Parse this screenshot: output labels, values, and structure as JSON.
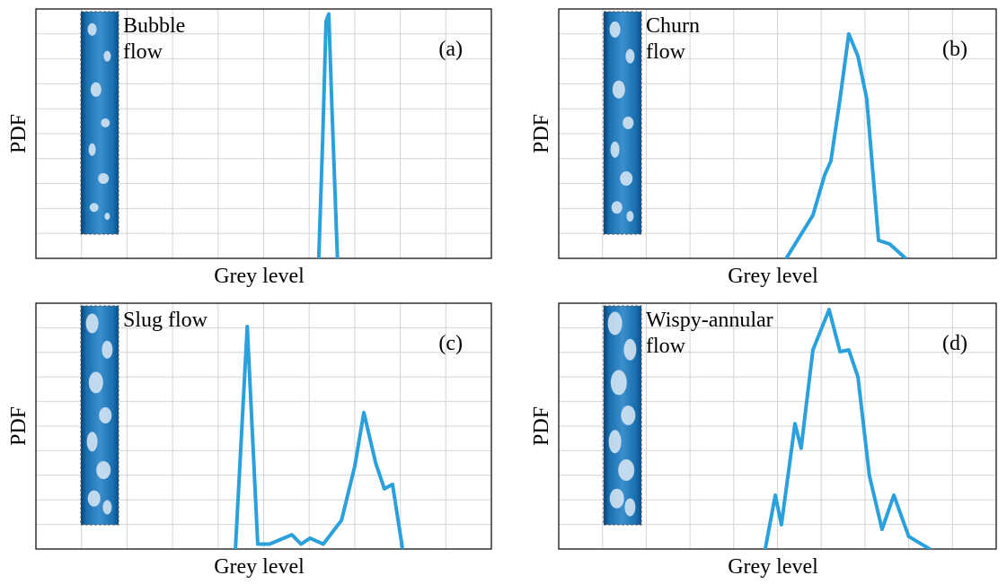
{
  "chart_data": [
    {
      "type": "line",
      "panel_label": "(a)",
      "annotation": [
        "Bubble",
        "flow"
      ],
      "xlabel": "Grey level",
      "ylabel": "PDF",
      "x": [
        6.21,
        6.3,
        6.37,
        6.43,
        6.5,
        6.62
      ],
      "values": [
        0,
        5,
        9.5,
        9.8,
        6,
        0
      ],
      "color": "#2aa0dc",
      "xlim": [
        0,
        10
      ],
      "ylim": [
        0,
        10
      ],
      "xticks": [
        0,
        1,
        2,
        3,
        4,
        5,
        6,
        7,
        8,
        9,
        10
      ],
      "yticks": [
        0,
        1,
        2,
        3,
        4,
        5,
        6,
        7,
        8,
        9,
        10
      ],
      "grid": true
    },
    {
      "type": "line",
      "panel_label": "(b)",
      "annotation": [
        "Churn",
        "flow"
      ],
      "xlabel": "Grey level",
      "ylabel": "PDF",
      "x": [
        5.2,
        5.81,
        6.08,
        6.22,
        6.43,
        6.63,
        6.84,
        7.04,
        7.31,
        7.56,
        7.93
      ],
      "values": [
        0,
        1.73,
        3.35,
        3.9,
        6.4,
        9.0,
        8.1,
        6.4,
        0.72,
        0.58,
        0
      ],
      "color": "#2aa0dc",
      "xlim": [
        0,
        10
      ],
      "ylim": [
        0,
        10
      ],
      "xticks": [
        0,
        1,
        2,
        3,
        4,
        5,
        6,
        7,
        8,
        9,
        10
      ],
      "yticks": [
        0,
        1,
        2,
        3,
        4,
        5,
        6,
        7,
        8,
        9,
        10
      ],
      "grid": true
    },
    {
      "type": "line",
      "panel_label": "(c)",
      "annotation": [
        "Slug flow"
      ],
      "xlabel": "Grey level",
      "ylabel": "PDF",
      "x": [
        4.38,
        4.64,
        4.87,
        5.13,
        5.62,
        5.82,
        6.02,
        6.31,
        6.71,
        7.0,
        7.2,
        7.46,
        7.65,
        7.83,
        8.05
      ],
      "values": [
        0,
        9.05,
        0.2,
        0.2,
        0.58,
        0.2,
        0.44,
        0.2,
        1.17,
        3.36,
        5.55,
        3.5,
        2.45,
        2.63,
        0
      ],
      "color": "#2aa0dc",
      "xlim": [
        0,
        10
      ],
      "ylim": [
        0,
        10
      ],
      "xticks": [
        0,
        1,
        2,
        3,
        4,
        5,
        6,
        7,
        8,
        9,
        10
      ],
      "yticks": [
        0,
        1,
        2,
        3,
        4,
        5,
        6,
        7,
        8,
        9,
        10
      ],
      "grid": true
    },
    {
      "type": "line",
      "panel_label": "(d)",
      "annotation": [
        "Wispy-annular",
        "flow"
      ],
      "xlabel": "Grey level",
      "ylabel": "PDF",
      "x": [
        4.72,
        4.95,
        5.09,
        5.4,
        5.54,
        5.81,
        6.18,
        6.43,
        6.63,
        6.84,
        7.1,
        7.39,
        7.66,
        8.0,
        8.48
      ],
      "values": [
        0,
        2.19,
        0.99,
        5.1,
        4.1,
        8.1,
        9.74,
        8.03,
        8.1,
        7.0,
        2.99,
        0.8,
        2.19,
        0.51,
        0
      ],
      "color": "#2aa0dc",
      "xlim": [
        0,
        10
      ],
      "ylim": [
        0,
        10
      ],
      "xticks": [
        0,
        1,
        2,
        3,
        4,
        5,
        6,
        7,
        8,
        9,
        10
      ],
      "yticks": [
        0,
        1,
        2,
        3,
        4,
        5,
        6,
        7,
        8,
        9,
        10
      ],
      "grid": true
    }
  ]
}
